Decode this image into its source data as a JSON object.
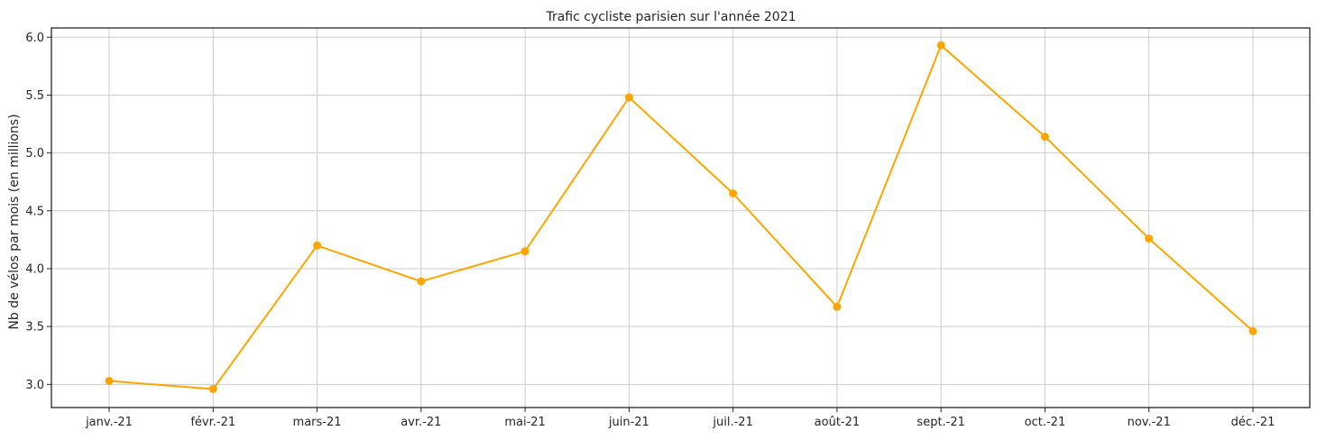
{
  "chart_data": {
    "type": "line",
    "title": "Trafic cycliste parisien sur l'année 2021",
    "xlabel": "",
    "ylabel": "Nb de vélos par mois (en millions)",
    "categories": [
      "janv.-21",
      "févr.-21",
      "mars-21",
      "avr.-21",
      "mai-21",
      "juin-21",
      "juil.-21",
      "août-21",
      "sept.-21",
      "oct.-21",
      "nov.-21",
      "déc.-21"
    ],
    "series": [
      {
        "values": [
          3.03,
          2.96,
          4.2,
          3.89,
          4.15,
          5.48,
          4.65,
          3.67,
          5.93,
          5.14,
          4.26,
          3.46
        ],
        "color": "#ffa500",
        "marker": "circle"
      }
    ],
    "ylim": [
      2.8,
      6.08
    ],
    "yticks": [
      3.0,
      3.5,
      4.0,
      4.5,
      5.0,
      5.5,
      6.0
    ],
    "ytick_labels": [
      "3.0",
      "3.5",
      "4.0",
      "4.5",
      "5.0",
      "5.5",
      "6.0"
    ],
    "grid": true,
    "legend": "none"
  }
}
